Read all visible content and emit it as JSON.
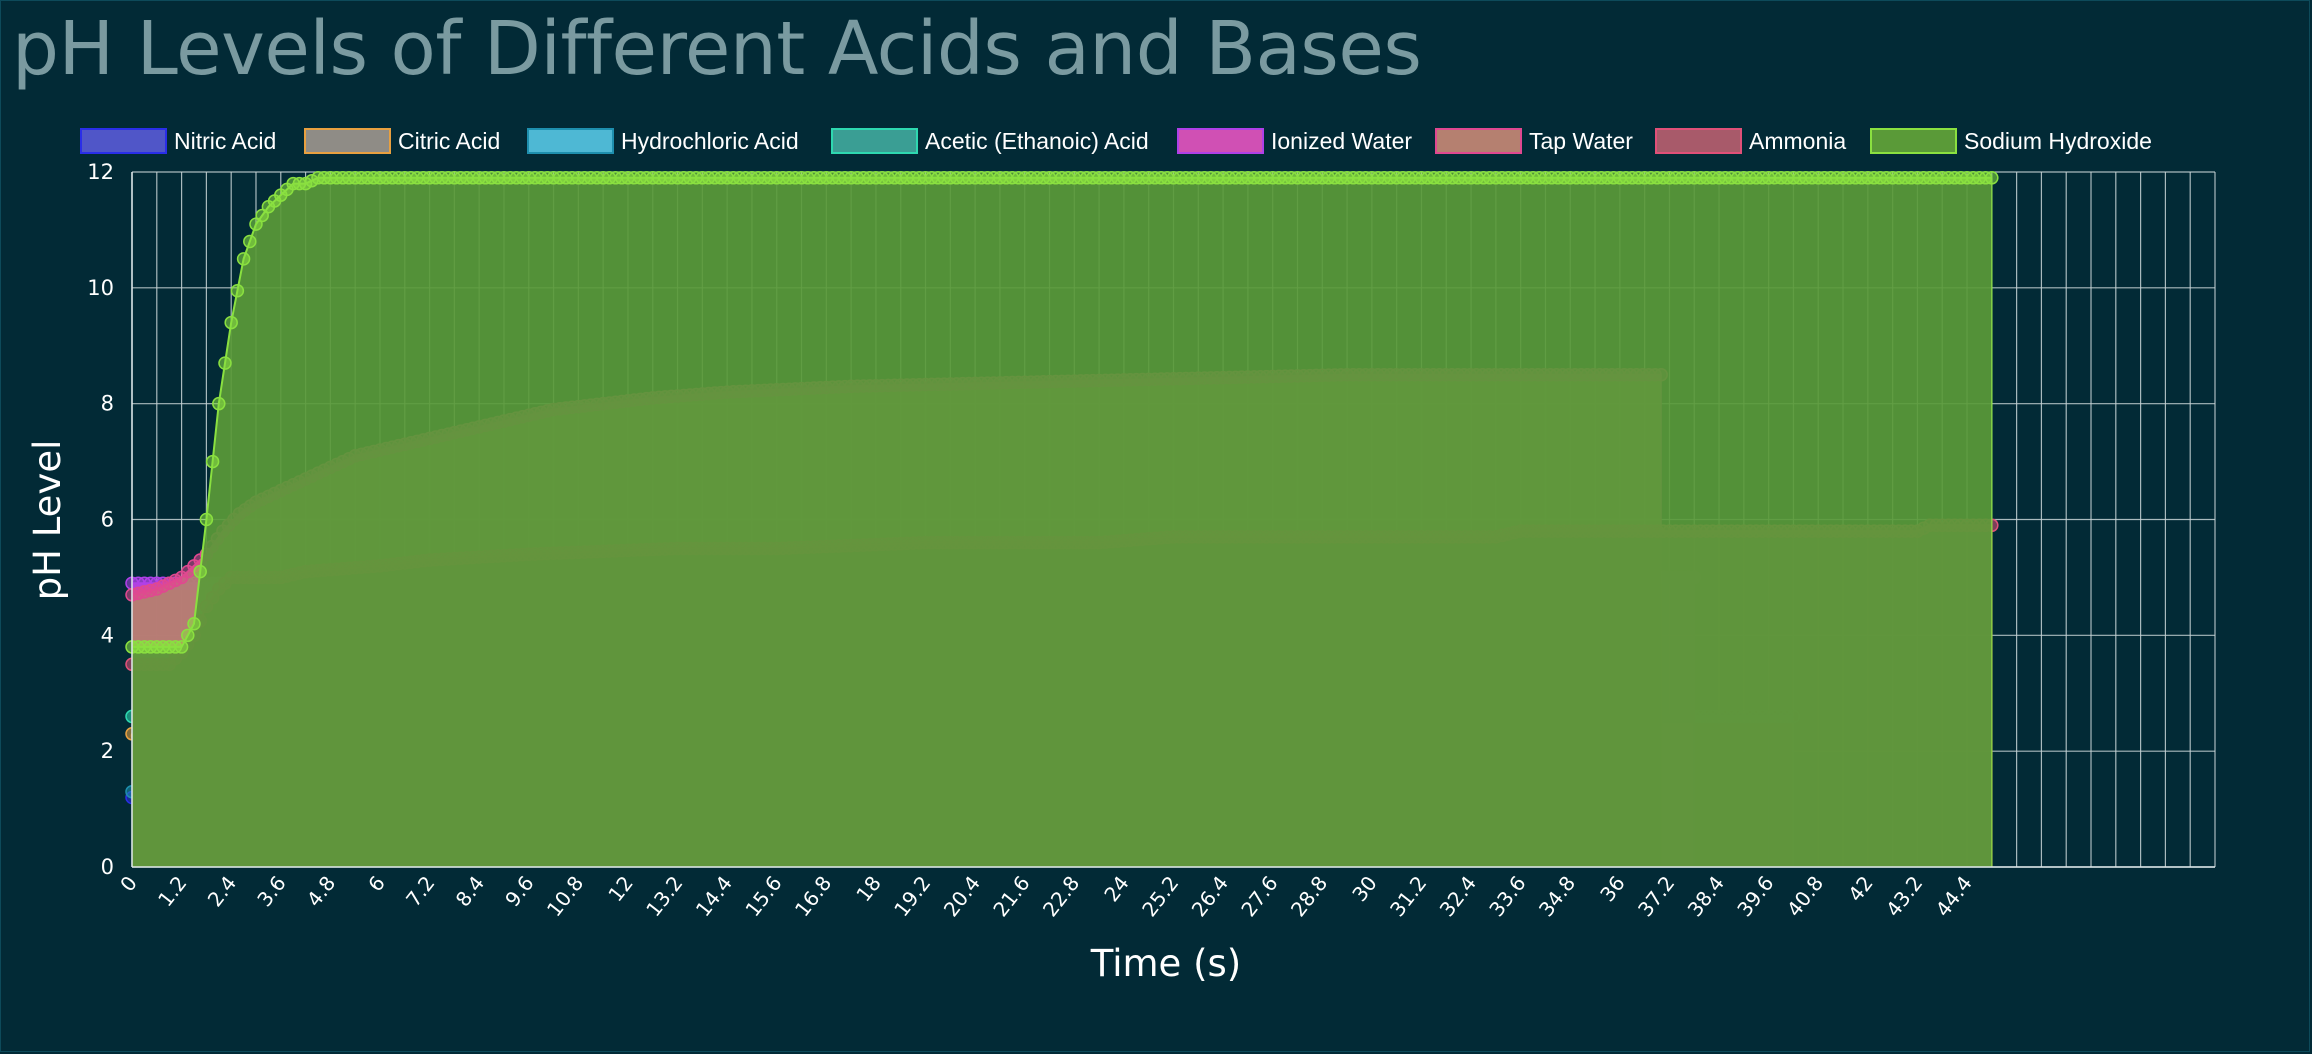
{
  "title": "pH Levels of Different Acids and Bases",
  "chart_data": {
    "type": "area",
    "xlabel": "Time (s)",
    "ylabel": "pH Level",
    "xlim": [
      0,
      50.4
    ],
    "ylim": [
      0,
      12
    ],
    "x_step": 0.6,
    "x_tick_label_every": 1.2,
    "y_ticks": [
      0,
      2,
      4,
      6,
      8,
      10,
      12
    ],
    "grid": true,
    "legend": "top",
    "series": [
      {
        "name": "Nitric Acid",
        "color": "#2a2ee8",
        "fill": "#5056c8",
        "points": [
          [
            0,
            1.2
          ],
          [
            10,
            1.2
          ],
          [
            18.6,
            1.2
          ],
          [
            18.8,
            1.1
          ],
          [
            22.4,
            1.1
          ],
          [
            22.8,
            1.2
          ],
          [
            23.4,
            1.1
          ],
          [
            24.0,
            1.1
          ],
          [
            24.3,
            1.2
          ],
          [
            24.6,
            1.1
          ],
          [
            25.2,
            1.1
          ]
        ]
      },
      {
        "name": "Citric Acid",
        "color": "#e8a040",
        "fill": "#8f8c86",
        "points": [
          [
            0,
            2.3
          ],
          [
            0.4,
            2.2
          ],
          [
            0.9,
            2.1
          ],
          [
            11.8,
            2.1
          ],
          [
            12.0,
            2.0
          ],
          [
            25.6,
            2.0
          ]
        ]
      },
      {
        "name": "Hydrochloric Acid",
        "color": "#1e8fae",
        "fill": "#4eb8d4",
        "points": [
          [
            0,
            1.3
          ],
          [
            1.2,
            1.3
          ],
          [
            1.6,
            1.2
          ],
          [
            10.2,
            1.2
          ],
          [
            10.4,
            1.1
          ],
          [
            18.4,
            1.1
          ],
          [
            18.8,
            1.1
          ],
          [
            25.0,
            1.1
          ],
          [
            25.6,
            1.1
          ],
          [
            36.6,
            1.1
          ]
        ]
      },
      {
        "name": "Acetic (Ethanoic) Acid",
        "color": "#2ed8b0",
        "fill": "#3a9e94",
        "points": [
          [
            0,
            2.6
          ],
          [
            40.2,
            2.6
          ]
        ]
      },
      {
        "name": "Ionized Water",
        "color": "#b040e8",
        "fill": "#d050b4",
        "points": [
          [
            0,
            4.9
          ],
          [
            6.0,
            4.9
          ],
          [
            6.3,
            5.0
          ],
          [
            37.8,
            5.0
          ]
        ]
      },
      {
        "name": "Tap Water",
        "color": "#e04890",
        "fill": "#b58070",
        "points": [
          [
            0,
            4.7
          ],
          [
            0.6,
            4.8
          ],
          [
            0.9,
            4.9
          ],
          [
            1.2,
            5.0
          ],
          [
            1.8,
            5.4
          ],
          [
            2.2,
            5.8
          ],
          [
            2.6,
            6.1
          ],
          [
            3.0,
            6.3
          ],
          [
            3.6,
            6.5
          ],
          [
            4.2,
            6.7
          ],
          [
            4.8,
            6.9
          ],
          [
            5.4,
            7.1
          ],
          [
            6.0,
            7.2
          ],
          [
            6.6,
            7.3
          ],
          [
            7.2,
            7.4
          ],
          [
            7.8,
            7.5
          ],
          [
            8.4,
            7.6
          ],
          [
            9.0,
            7.7
          ],
          [
            9.6,
            7.8
          ],
          [
            10.2,
            7.9
          ],
          [
            11.4,
            8.0
          ],
          [
            12.6,
            8.1
          ],
          [
            14.4,
            8.2
          ],
          [
            17.4,
            8.3
          ],
          [
            23.4,
            8.4
          ],
          [
            29.4,
            8.5
          ],
          [
            37.0,
            8.5
          ]
        ]
      },
      {
        "name": "Ammonia",
        "color": "#e05078",
        "fill": "#a85a6a",
        "points": [
          [
            0,
            3.5
          ],
          [
            0.9,
            3.5
          ],
          [
            1.2,
            3.7
          ],
          [
            1.5,
            4.0
          ],
          [
            1.8,
            4.5
          ],
          [
            2.1,
            4.8
          ],
          [
            2.4,
            5.0
          ],
          [
            3.6,
            5.0
          ],
          [
            4.2,
            5.1
          ],
          [
            6.0,
            5.2
          ],
          [
            7.2,
            5.3
          ],
          [
            9.6,
            5.4
          ],
          [
            13.2,
            5.5
          ],
          [
            15.6,
            5.5
          ],
          [
            19.2,
            5.6
          ],
          [
            23.4,
            5.6
          ],
          [
            25.2,
            5.7
          ],
          [
            33.0,
            5.7
          ],
          [
            33.6,
            5.8
          ],
          [
            43.2,
            5.8
          ],
          [
            43.5,
            5.9
          ],
          [
            45.0,
            5.9
          ]
        ]
      },
      {
        "name": "Sodium Hydroxide",
        "color": "#8ae040",
        "fill": "#5a9a38",
        "points": [
          [
            0,
            3.8
          ],
          [
            0.6,
            3.8
          ],
          [
            1.2,
            3.8
          ],
          [
            1.5,
            4.2
          ],
          [
            1.8,
            6.0
          ],
          [
            2.1,
            8.0
          ],
          [
            2.4,
            9.4
          ],
          [
            2.7,
            10.5
          ],
          [
            3.0,
            11.1
          ],
          [
            3.3,
            11.4
          ],
          [
            3.6,
            11.6
          ],
          [
            3.9,
            11.8
          ],
          [
            4.2,
            11.8
          ],
          [
            4.5,
            11.9
          ],
          [
            45.0,
            11.9
          ]
        ]
      }
    ]
  }
}
